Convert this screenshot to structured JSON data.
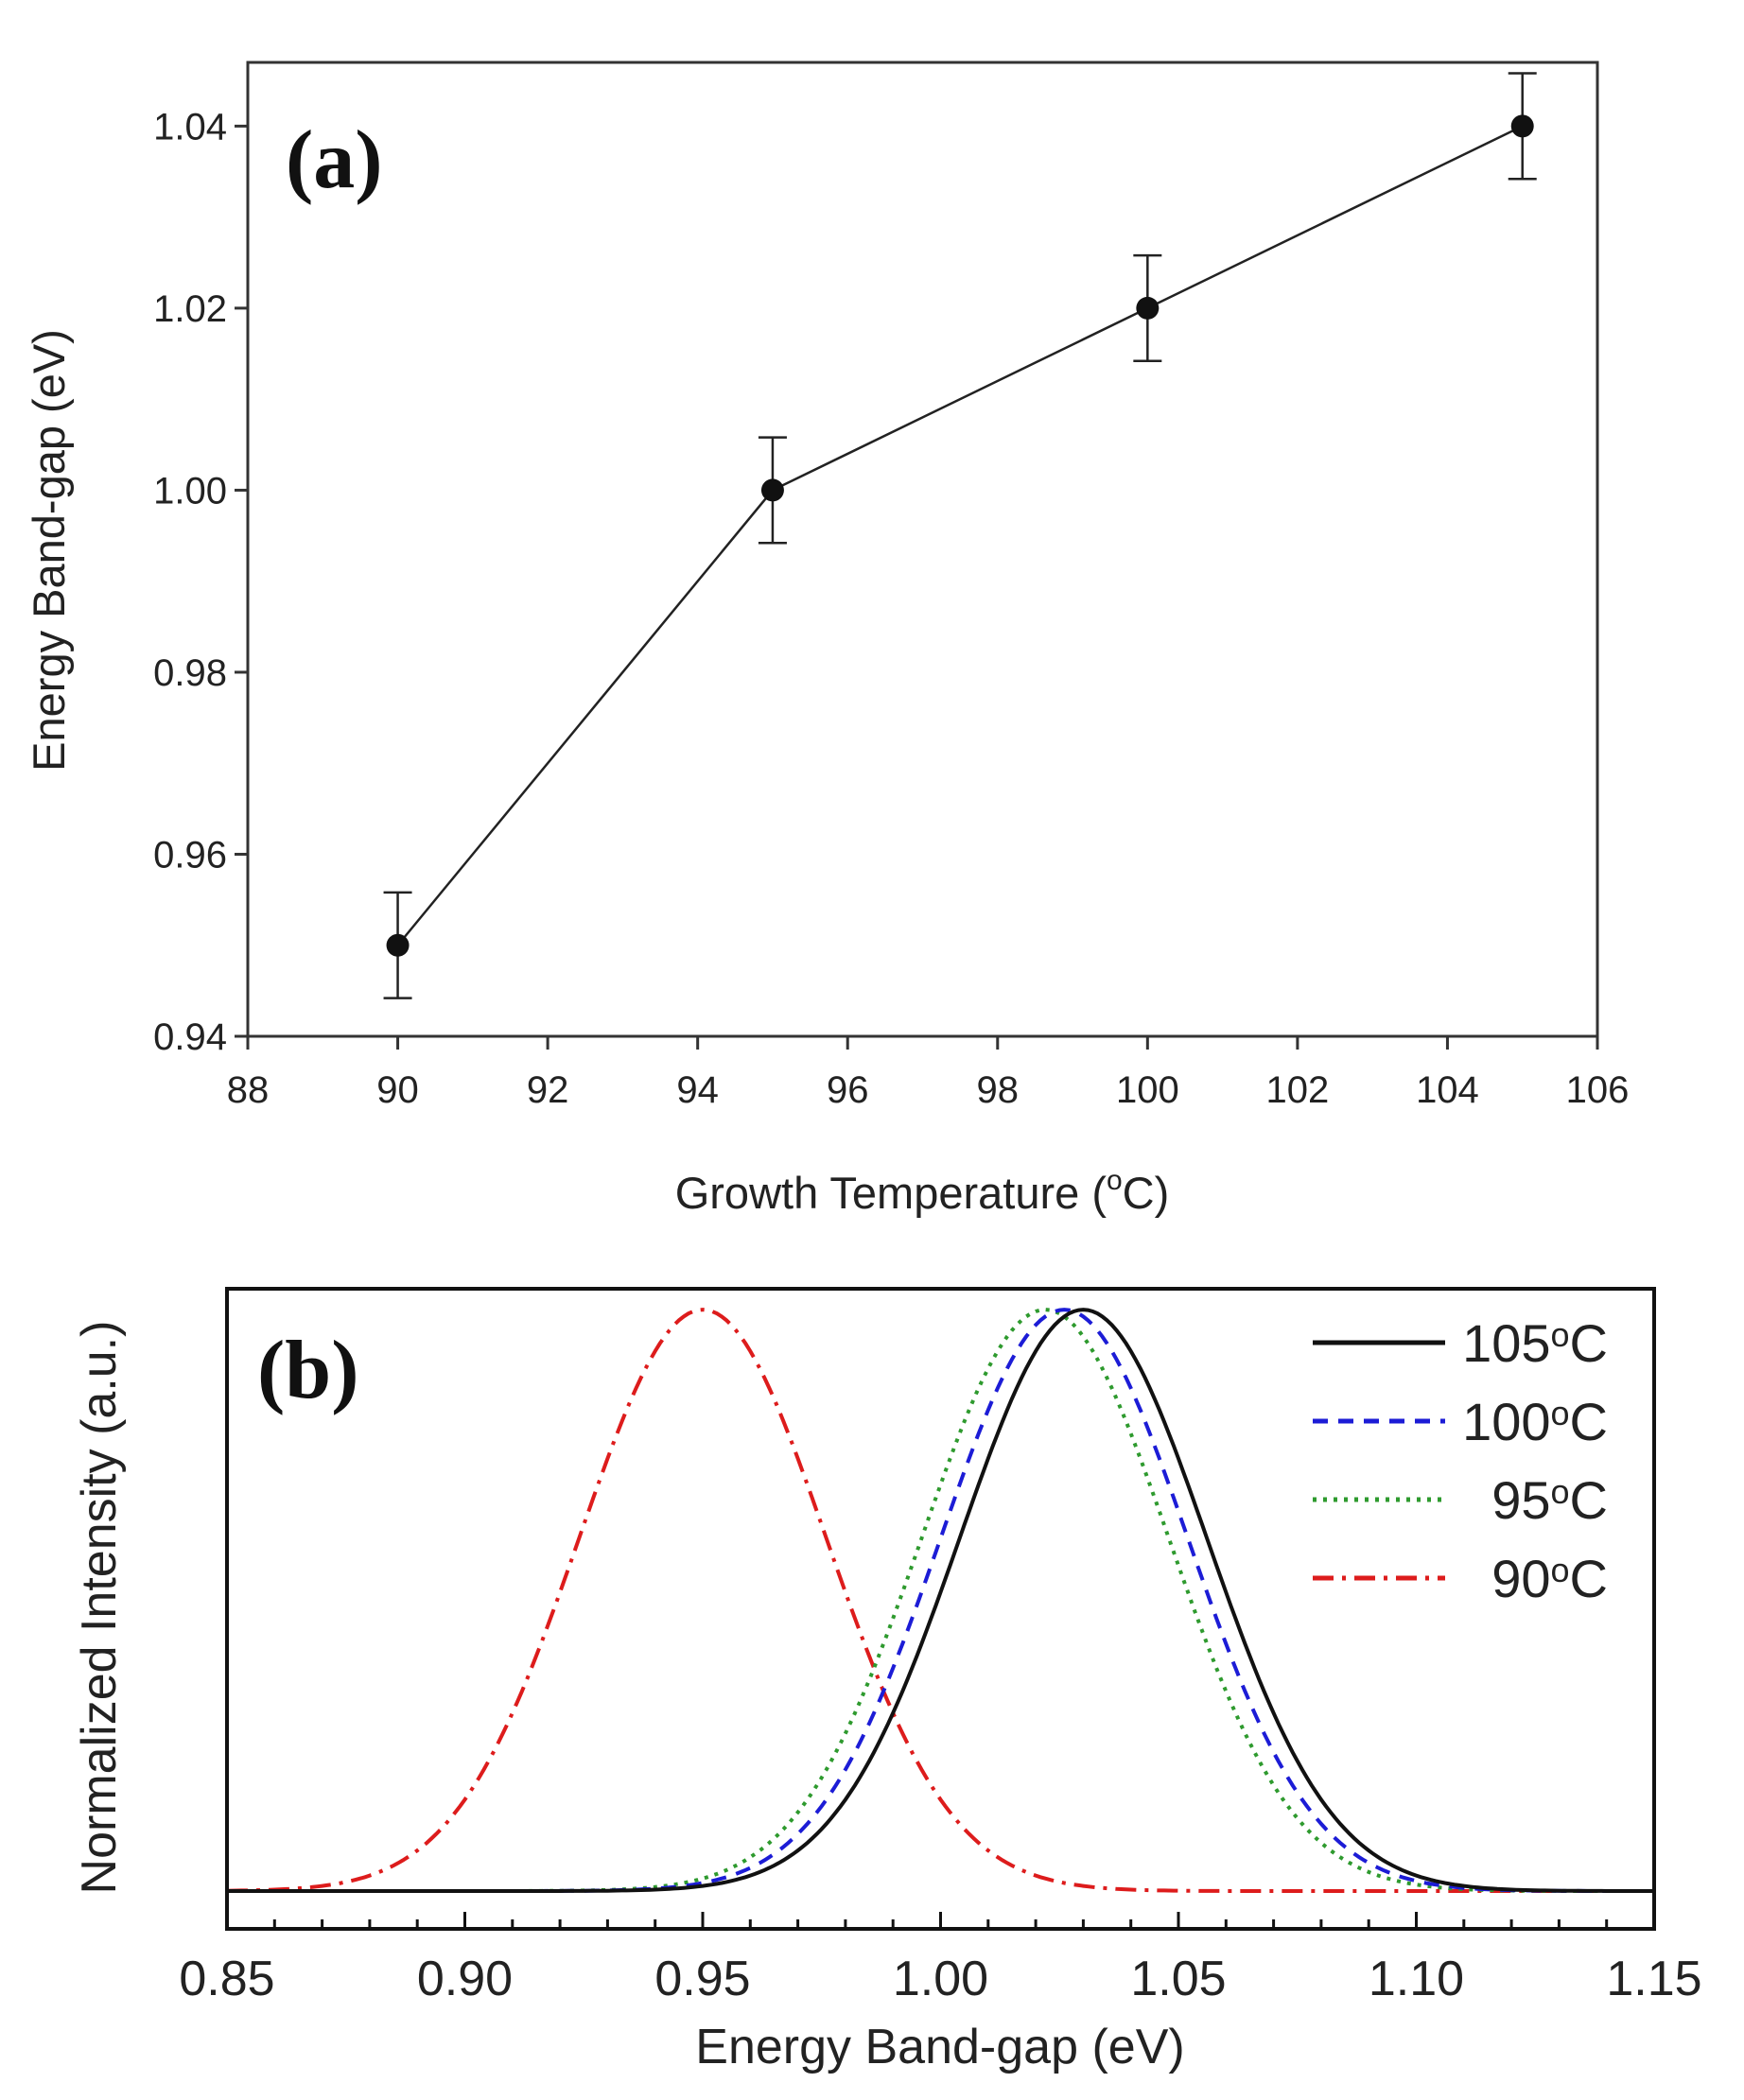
{
  "chart_data": [
    {
      "type": "line",
      "panel_label": "(a)",
      "xlabel_main": "Growth Temperature (",
      "xlabel_sup": "o",
      "xlabel_end": "C)",
      "ylabel": "Energy Band-gap (eV)",
      "xlim": [
        88,
        106
      ],
      "ylim": [
        0.94,
        1.047
      ],
      "xticks": [
        "88",
        "90",
        "92",
        "94",
        "96",
        "98",
        "100",
        "102",
        "104",
        "106"
      ],
      "yticks": [
        "0.94",
        "0.96",
        "0.98",
        "1.00",
        "1.02",
        "1.04"
      ],
      "x": [
        90,
        95,
        100,
        105
      ],
      "y": [
        0.95,
        1.0,
        1.02,
        1.04
      ],
      "yerr": [
        0.0058,
        0.0058,
        0.0058,
        0.0058
      ],
      "color": "#222222"
    },
    {
      "type": "line",
      "panel_label": "(b)",
      "xlabel": "Energy Band-gap (eV)",
      "ylabel": "Normalized Intensity (a.u.)",
      "xlim": [
        0.85,
        1.15
      ],
      "ylim": [
        -0.065,
        1.036
      ],
      "xticks": [
        "0.85",
        "0.90",
        "0.95",
        "1.00",
        "1.05",
        "1.10",
        "1.15"
      ],
      "series": [
        {
          "name": "105",
          "legend_sup": "o",
          "legend_unit": "C",
          "center": 1.03,
          "sigma": 0.026,
          "color": "#111111",
          "dash": ""
        },
        {
          "name": "100",
          "legend_sup": "o",
          "legend_unit": "C",
          "center": 1.026,
          "sigma": 0.026,
          "color": "#1c1cd6",
          "dash": "16,11"
        },
        {
          "name": "95",
          "legend_sup": "o",
          "legend_unit": "C",
          "center": 1.022,
          "sigma": 0.026,
          "color": "#2e9a2e",
          "dash": "4,7"
        },
        {
          "name": "90",
          "legend_sup": "o",
          "legend_unit": "C",
          "center": 0.95,
          "sigma": 0.026,
          "color": "#dd1c1c",
          "dash": "22,9,4,9"
        }
      ]
    }
  ]
}
